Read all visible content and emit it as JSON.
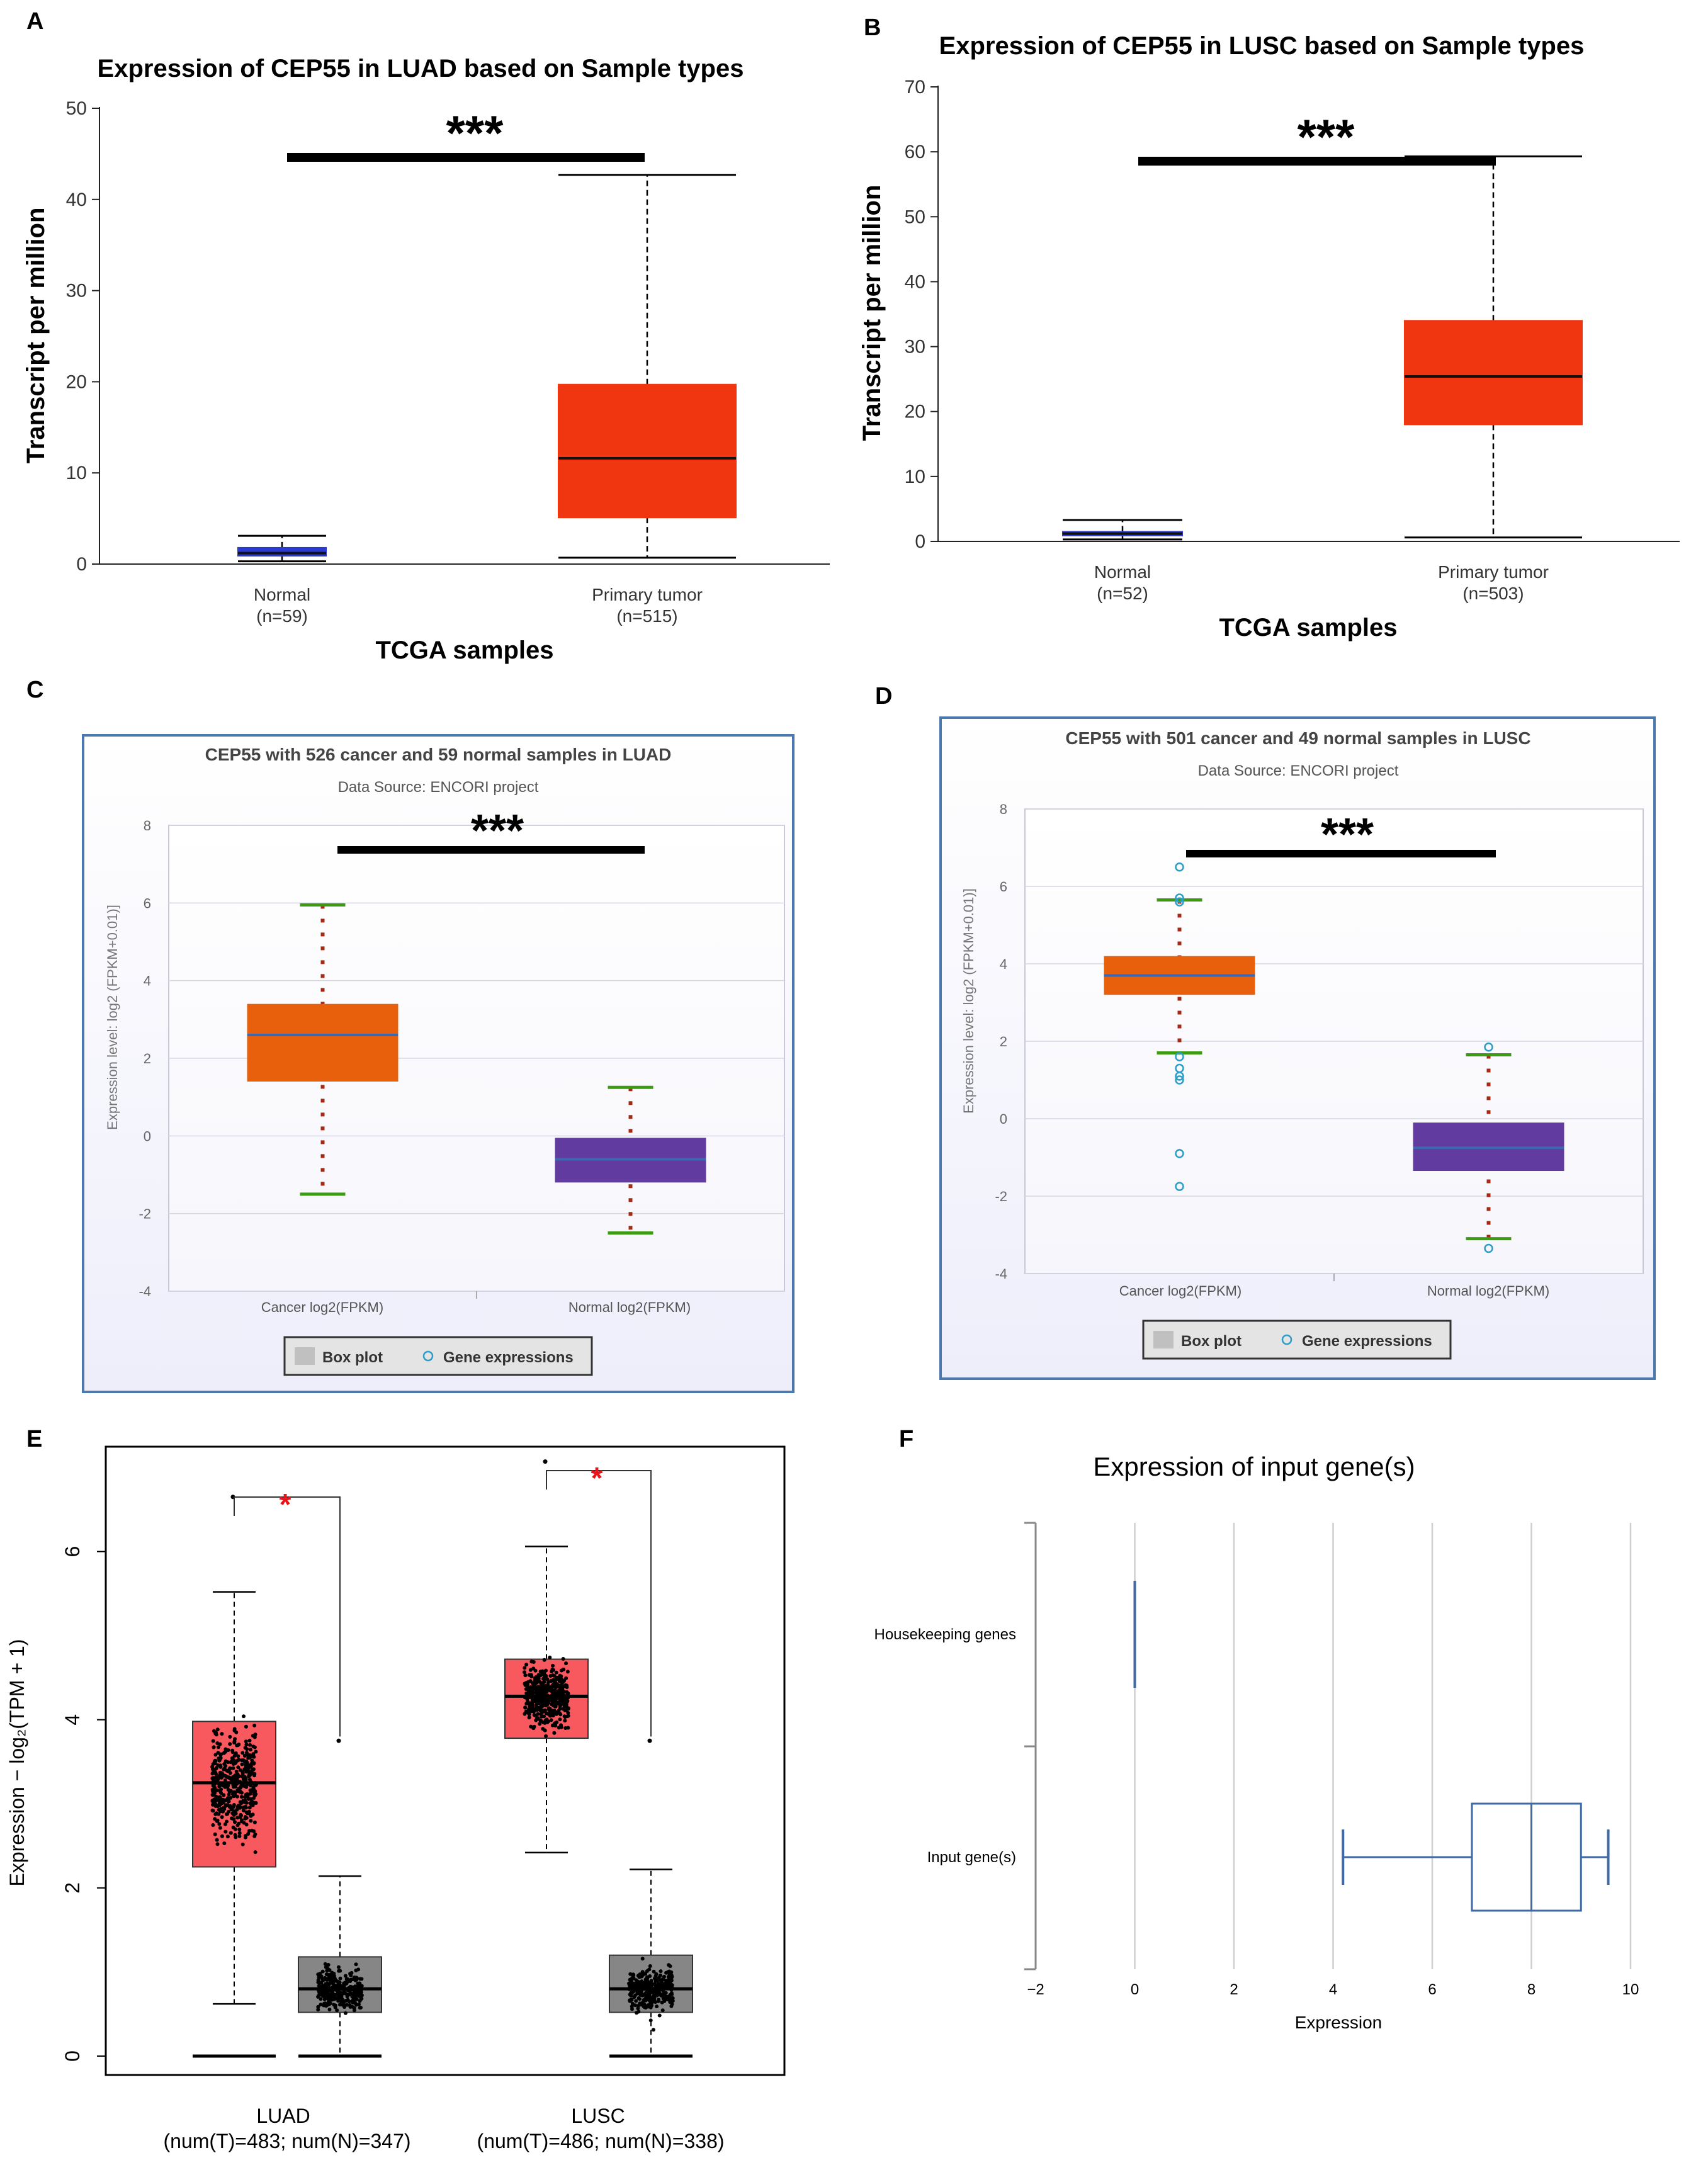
{
  "colors": {
    "tumor_red": "#f03511",
    "normal_blue": "#2b3bd1",
    "encori_orange": "#e8600c",
    "encori_purple": "#613b9f",
    "whisker_green": "#3d9a13",
    "whisker_dots": "#a32a16",
    "mean_line": "#3d68b0",
    "frame_blue": "#4b79ad",
    "gepia_red": "#f7595f",
    "gepia_gray": "#868686",
    "sig_red": "#e8141a",
    "box_f": "#3f6aa5"
  },
  "chart_data": [
    {
      "panel": "A",
      "type": "box",
      "title": "Expression of CEP55 in LUAD based on Sample types",
      "xlabel": "TCGA samples",
      "ylabel": "Transcript per million",
      "ylim": [
        0,
        50
      ],
      "yticks": [
        "0",
        "10",
        "20",
        "30",
        "40",
        "50"
      ],
      "significance": "***",
      "groups": [
        {
          "name": "Normal",
          "n": "(n=59)",
          "min": 0.3,
          "q1": 0.9,
          "median": 1.2,
          "q3": 1.8,
          "max": 3.1
        },
        {
          "name": "Primary tumor",
          "n": "(n=515)",
          "min": 0.7,
          "q1": 5.1,
          "median": 11.6,
          "q3": 19.7,
          "max": 42.7
        }
      ]
    },
    {
      "panel": "B",
      "type": "box",
      "title": "Expression of CEP55 in LUSC based on Sample types",
      "xlabel": "TCGA samples",
      "ylabel": "Transcript per million",
      "ylim": [
        0,
        70
      ],
      "yticks": [
        "0",
        "10",
        "20",
        "30",
        "40",
        "50",
        "60",
        "70"
      ],
      "significance": "***",
      "groups": [
        {
          "name": "Normal",
          "n": "(n=52)",
          "min": 0.3,
          "q1": 0.9,
          "median": 1.2,
          "q3": 1.5,
          "max": 3.3
        },
        {
          "name": "Primary tumor",
          "n": "(n=503)",
          "min": 0.6,
          "q1": 18.0,
          "median": 25.4,
          "q3": 34.0,
          "max": 59.3
        }
      ]
    },
    {
      "panel": "C",
      "type": "box",
      "title": "CEP55 with 526 cancer and 59 normal samples in LUAD",
      "subtitle": "Data Source: ENCORI project",
      "ylabel": "Expression level: log2 (FPKM+0.01)]",
      "ylim": [
        -4,
        8
      ],
      "yticks": [
        "-4",
        "-2",
        "0",
        "2",
        "4",
        "6",
        "8"
      ],
      "significance": "***",
      "legend": [
        "Box plot",
        "Gene expressions"
      ],
      "groups": [
        {
          "name": "Cancer log2(FPKM)",
          "min": -1.5,
          "q1": 1.4,
          "median": 2.6,
          "q3": 3.4,
          "max": 5.95,
          "outliers": []
        },
        {
          "name": "Normal log2(FPKM)",
          "min": -2.5,
          "q1": -1.2,
          "median": -0.6,
          "q3": -0.05,
          "max": 1.25,
          "outliers": []
        }
      ]
    },
    {
      "panel": "D",
      "type": "box",
      "title": "CEP55 with 501 cancer and 49 normal samples in LUSC",
      "subtitle": "Data Source: ENCORI project",
      "ylabel": "Expression level: log2 (FPKM+0.01)]",
      "ylim": [
        -4,
        8
      ],
      "yticks": [
        "-4",
        "-2",
        "0",
        "2",
        "4",
        "6",
        "8"
      ],
      "significance": "***",
      "legend": [
        "Box plot",
        "Gene expressions"
      ],
      "groups": [
        {
          "name": "Cancer log2(FPKM)",
          "min": 1.7,
          "q1": 3.2,
          "median": 3.7,
          "q3": 4.2,
          "max": 5.65,
          "outliers": [
            6.5,
            5.7,
            5.6,
            1.6,
            1.3,
            1.1,
            1.0,
            -0.9,
            -1.75
          ]
        },
        {
          "name": "Normal log2(FPKM)",
          "min": -3.1,
          "q1": -1.35,
          "median": -0.75,
          "q3": -0.1,
          "max": 1.65,
          "outliers": [
            1.85,
            -3.35
          ]
        }
      ]
    },
    {
      "panel": "E",
      "type": "box",
      "ylabel": "Expression − log₂(TPM + 1)",
      "ylim": [
        0,
        7
      ],
      "yticks": [
        "0",
        "2",
        "4",
        "6"
      ],
      "significance": "*",
      "groups": [
        {
          "cancer": "LUAD",
          "counts": "(num(T)=483; num(N)=347)",
          "tumor": {
            "min": 0.62,
            "q1": 2.25,
            "median": 3.25,
            "q3": 3.98,
            "max": 5.52,
            "top": 6.65
          },
          "normal": {
            "min": 0.0,
            "q1": 0.52,
            "median": 0.8,
            "q3": 1.18,
            "max": 2.14,
            "top": 3.75
          }
        },
        {
          "cancer": "LUSC",
          "counts": "(num(T)=486; num(N)=338)",
          "tumor": {
            "min": 2.42,
            "q1": 3.78,
            "median": 4.28,
            "q3": 4.72,
            "max": 6.06,
            "top": 7.07
          },
          "normal": {
            "min": 0.0,
            "q1": 0.52,
            "median": 0.8,
            "q3": 1.2,
            "max": 2.22,
            "top": 3.75
          }
        }
      ]
    },
    {
      "panel": "F",
      "type": "box",
      "title": "Expression of input gene(s)",
      "xlabel": "Expression",
      "xlim": [
        -2,
        10.2
      ],
      "xticks": [
        "−2",
        "0",
        "2",
        "4",
        "6",
        "8",
        "10"
      ],
      "groups": [
        {
          "name": "Housekeeping genes",
          "min": 0.0,
          "q1": 0.0,
          "median": 0.0,
          "q3": 0.0,
          "max": 0.0
        },
        {
          "name": "Input gene(s)",
          "min": 4.2,
          "q1": 6.8,
          "median": 8.0,
          "q3": 9.0,
          "max": 9.55
        }
      ]
    }
  ],
  "panel_labels": [
    "A",
    "B",
    "C",
    "D",
    "E",
    "F"
  ]
}
